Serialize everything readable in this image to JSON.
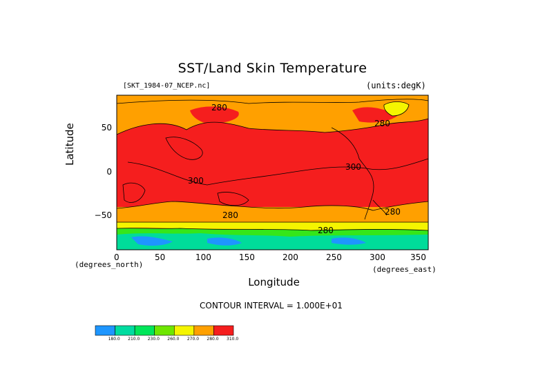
{
  "title": "SST/Land Skin Temperature",
  "file_label": "[SKT_1984-07_NCEP.nc]",
  "units_label": "(units:degK)",
  "y_axis_label": "Latitude",
  "x_axis_label": "Longitude",
  "x_unit_left": "(degrees_north)",
  "x_unit_right": "(degrees_east)",
  "contour_interval_text": "CONTOUR INTERVAL = 1.000E+01",
  "x_ticks": [
    "0",
    "50",
    "100",
    "150",
    "200",
    "250",
    "300",
    "350"
  ],
  "y_ticks": [
    "50",
    "0",
    "−50"
  ],
  "contour_labels": [
    "280",
    "280",
    "300",
    "300",
    "280",
    "280",
    "280"
  ],
  "colorbar": {
    "labels": [
      "180.0",
      "210.0",
      "230.0",
      "260.0",
      "270.0",
      "280.0",
      "310.0"
    ],
    "colors": [
      "#1e96ff",
      "#00dca0",
      "#00e65a",
      "#6ee600",
      "#f5f500",
      "#ffa000",
      "#f51e1e"
    ]
  },
  "colors": {
    "warm": "#f51e1e",
    "mid": "#ffa000",
    "yellow": "#f5f500",
    "green": "#35e61a",
    "teal": "#00dc9a",
    "blue": "#1e96ff"
  }
}
